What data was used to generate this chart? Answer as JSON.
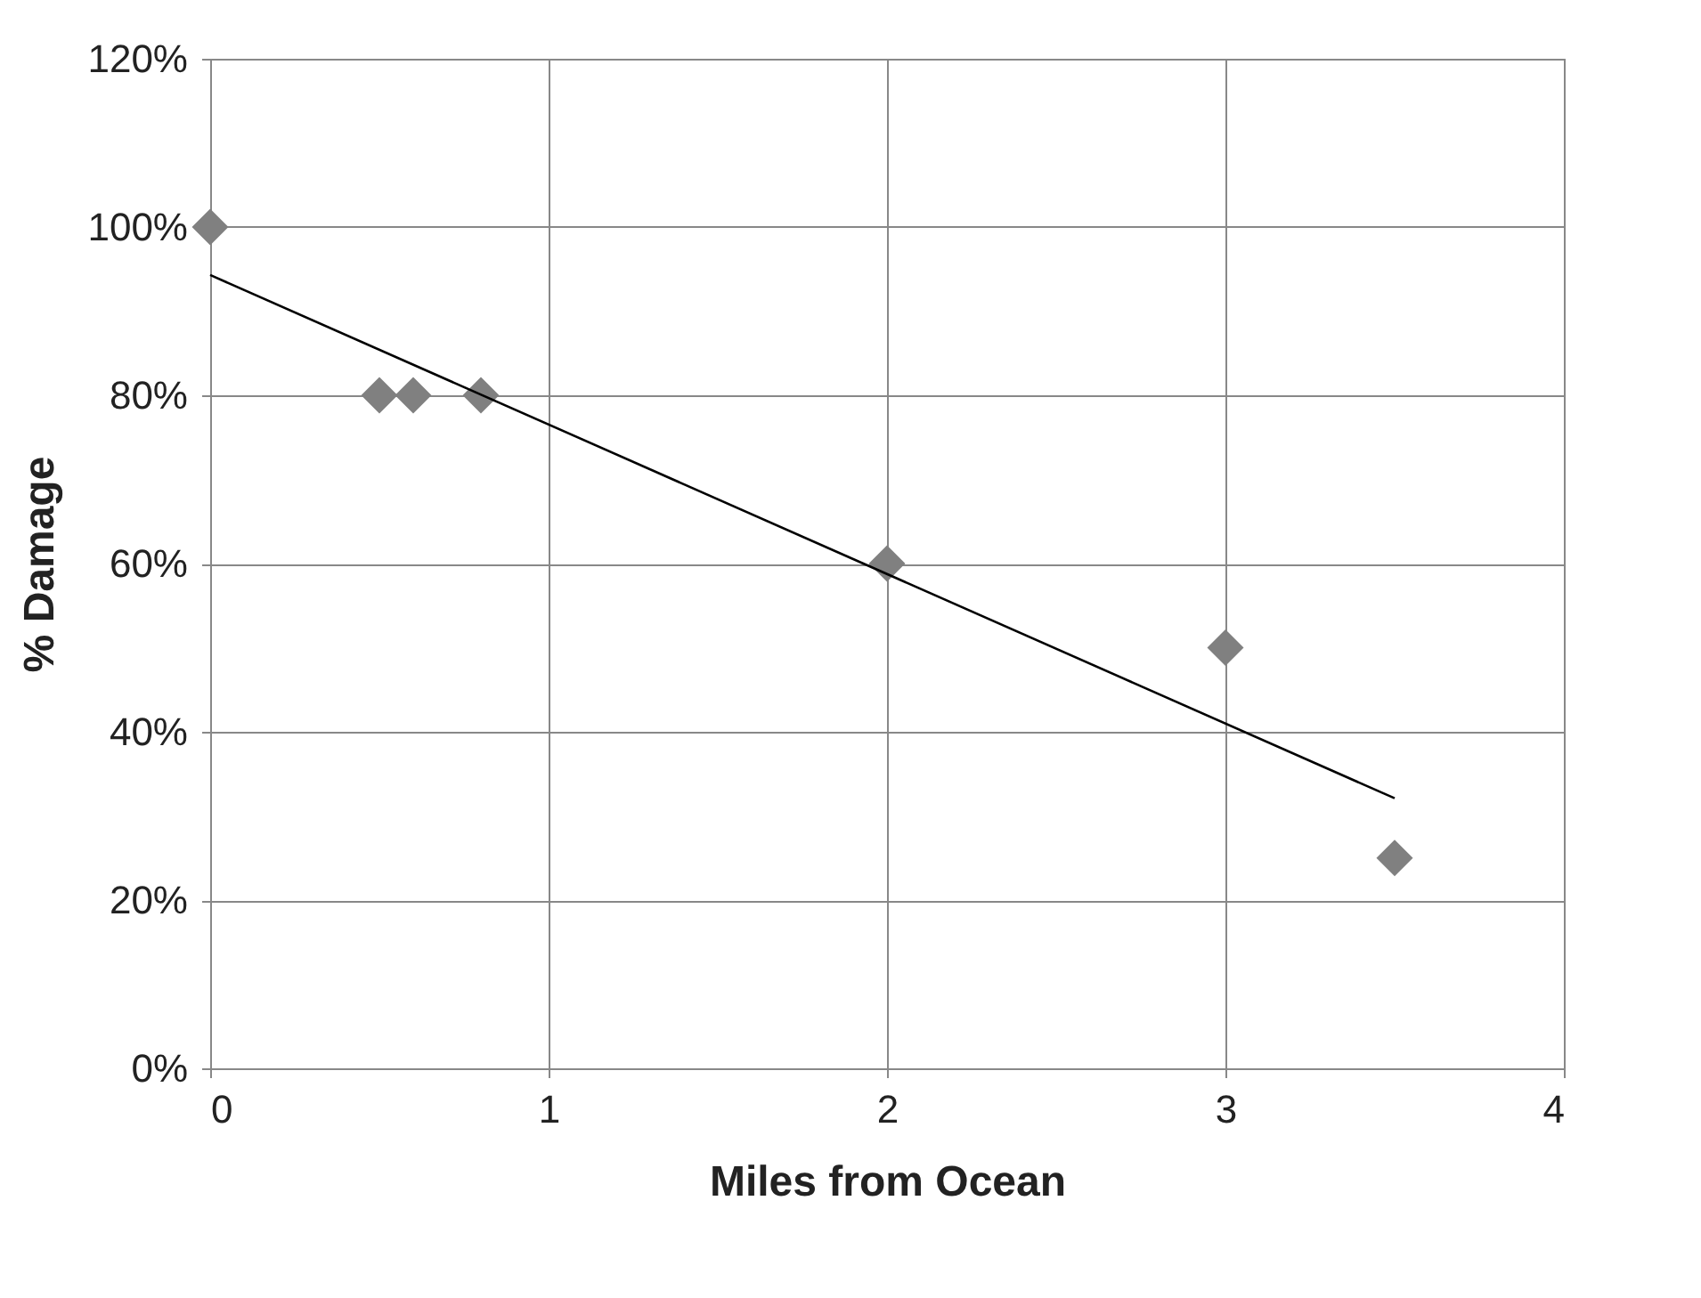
{
  "chart_data": {
    "type": "scatter",
    "xlabel": "Miles from Ocean",
    "ylabel": "% Damage",
    "series": [
      {
        "color": "#808080",
        "marker": "diamond",
        "x": [
          0,
          0.5,
          0.6,
          0.8,
          2,
          3,
          3.5
        ],
        "values": [
          100,
          80,
          80,
          80,
          60,
          50,
          25
        ]
      },
      {
        "type": "line",
        "color": "#000000",
        "marker": "none",
        "x": [
          0,
          3.5
        ],
        "values": [
          94.3,
          32.1
        ]
      }
    ],
    "xlim": [
      0,
      4
    ],
    "xticks": [
      0,
      1,
      2,
      3,
      4
    ],
    "ylim": [
      0,
      120
    ],
    "yticks": [
      {
        "value": 0,
        "label": "0%"
      },
      {
        "value": 20,
        "label": "20%"
      },
      {
        "value": 40,
        "label": "40%"
      },
      {
        "value": 60,
        "label": "60%"
      },
      {
        "value": 80,
        "label": "80%"
      },
      {
        "value": 100,
        "label": "100%"
      },
      {
        "value": 120,
        "label": "120%"
      }
    ],
    "grid": true
  }
}
